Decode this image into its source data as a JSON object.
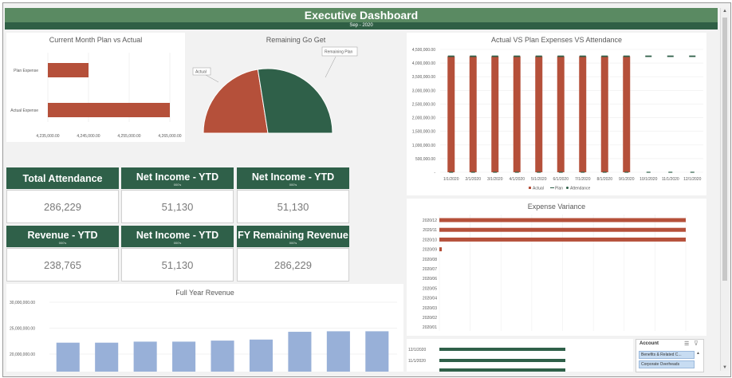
{
  "header": {
    "title": "Executive Dashboard",
    "period": "Sep - 2020"
  },
  "plan_vs_actual": {
    "title": "Current Month Plan vs Actual",
    "chart_data": {
      "type": "bar",
      "orientation": "horizontal",
      "categories": [
        "Plan Expense",
        "Actual Expense"
      ],
      "values": [
        4245000,
        4265000
      ],
      "xlim": [
        4235000,
        4265000
      ],
      "xticks": [
        "4,235,000.00",
        "4,245,000.00",
        "4,255,000.00",
        "4,265,000.00"
      ],
      "color": "#b5503a"
    }
  },
  "remaining": {
    "title": "Remaining Go Get",
    "chart_data": {
      "type": "pie",
      "categories": [
        "Actual",
        "Remaining Plan"
      ],
      "values": [
        45,
        55
      ],
      "colors": [
        "#b5503a",
        "#2f6049"
      ]
    }
  },
  "kpis": [
    {
      "title": "Total Attendance",
      "sub": "",
      "value": "286,229"
    },
    {
      "title": "Net Income - YTD",
      "sub": "000's",
      "value": "51,130"
    },
    {
      "title": "Net Income - YTD",
      "sub": "000's",
      "value": "51,130"
    },
    {
      "title": "Revenue - YTD",
      "sub": "000's",
      "value": "238,765"
    },
    {
      "title": "Net Income - YTD",
      "sub": "000's",
      "value": "51,130"
    },
    {
      "title": "FY Remaining Revenue",
      "sub": "000's",
      "value": "286,229"
    }
  ],
  "full_year": {
    "title": "Full Year Revenue",
    "chart_data": {
      "type": "bar",
      "values": [
        22200000,
        22200000,
        22400000,
        22400000,
        22600000,
        22800000,
        24300000,
        24400000,
        24400000
      ],
      "ylim": [
        20000000,
        30000000
      ],
      "yticks": [
        "20,000,000.00",
        "25,000,000.00",
        "30,000,000.00"
      ],
      "color": "#98b0d8"
    }
  },
  "avp": {
    "title": "Actual VS Plan Expenses VS Attendance",
    "chart_data": {
      "type": "bar",
      "categories": [
        "1/1/2020",
        "2/1/2020",
        "3/1/2020",
        "4/1/2020",
        "5/1/2020",
        "6/1/2020",
        "7/1/2020",
        "8/1/2020",
        "9/1/2020",
        "10/1/2020",
        "11/1/2020",
        "12/1/2020"
      ],
      "series": [
        {
          "name": "Actual",
          "values": [
            4250000,
            4250000,
            4250000,
            4250000,
            4250000,
            4250000,
            4250000,
            4250000,
            4250000,
            0,
            0,
            0
          ],
          "color": "#b5503a"
        },
        {
          "name": "Plan",
          "values": [
            4250000,
            4250000,
            4250000,
            4250000,
            4250000,
            4250000,
            4250000,
            4250000,
            4250000,
            4250000,
            4250000,
            4250000
          ],
          "color": "#2f6049"
        },
        {
          "name": "Attendance",
          "values": [
            0,
            0,
            0,
            0,
            0,
            0,
            0,
            0,
            0,
            0,
            0,
            0
          ],
          "color": "#2f6049"
        }
      ],
      "ylim": [
        0,
        4500000
      ],
      "yticks": [
        "-",
        "500,000.00",
        "1,000,000.00",
        "1,500,000.00",
        "2,000,000.00",
        "2,500,000.00",
        "3,000,000.00",
        "3,500,000.00",
        "4,000,000.00",
        "4,500,000.00"
      ],
      "legend": "bottom"
    }
  },
  "variance": {
    "title": "Expense Variance",
    "chart_data": {
      "type": "bar",
      "orientation": "horizontal",
      "categories": [
        "2020/12",
        "2020/11",
        "2020/10",
        "2020/09",
        "2020/08",
        "2020/07",
        "2020/06",
        "2020/05",
        "2020/04",
        "2020/03",
        "2020/02",
        "2020/01"
      ],
      "values": [
        1,
        1,
        1,
        0.01,
        0,
        0,
        0,
        0,
        0,
        0,
        0,
        0
      ],
      "color": "#b5503a"
    }
  },
  "lower_right": {
    "chart_data": {
      "type": "bar",
      "orientation": "horizontal",
      "categories": [
        "12/1/2020",
        "11/1/2020"
      ],
      "values": [
        1,
        1
      ],
      "color": "#2f6049"
    }
  },
  "account": {
    "title": "Account",
    "items": [
      "Benefits & Related C...",
      "Corporate Overheads"
    ]
  }
}
